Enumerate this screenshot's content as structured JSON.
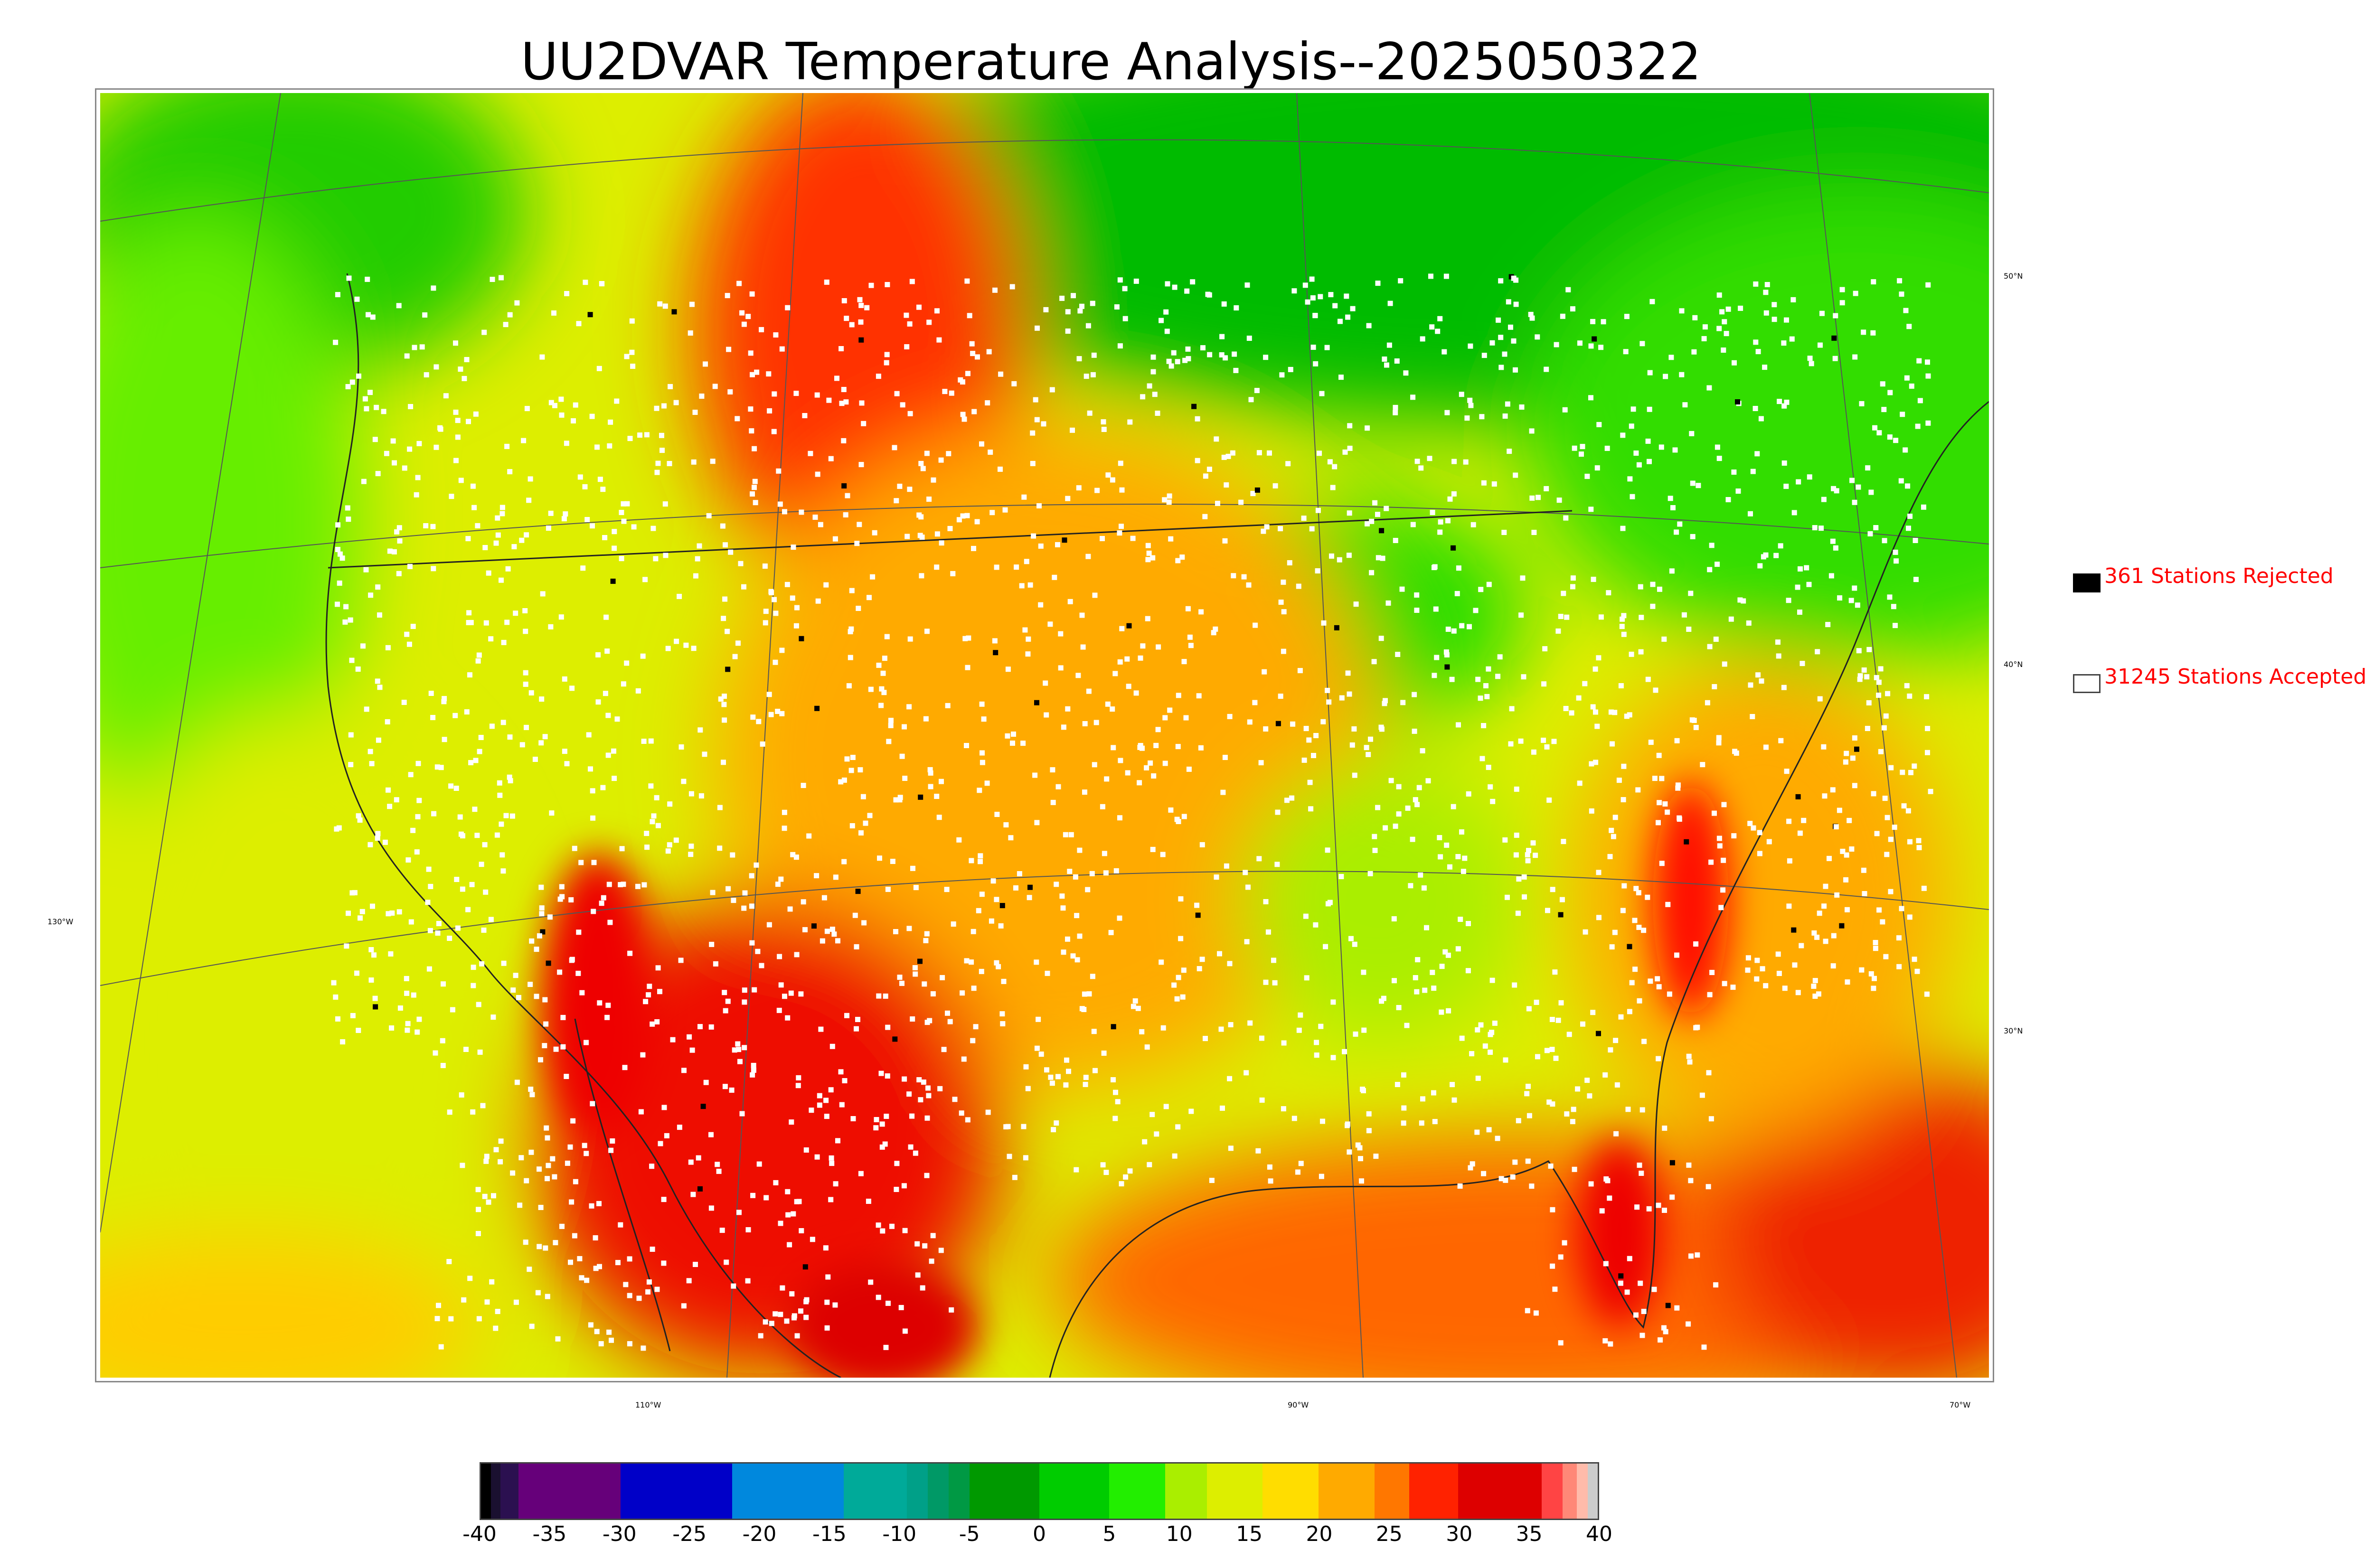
{
  "title": "UU2DVAR Temperature Analysis--2025050322",
  "legend": {
    "rejected": {
      "label": "361 Stations Rejected",
      "color": "#000000"
    },
    "accepted": {
      "label": "31245 Stations Accepted",
      "color": "#ffffff"
    }
  },
  "axes": {
    "lon_labels": [
      "130°W",
      "110°W",
      "90°W",
      "70°W"
    ],
    "lat_labels": [
      "50°N",
      "40°N",
      "30°N"
    ]
  },
  "colorbar": {
    "ticks": [
      "-40",
      "-35",
      "-30",
      "-25",
      "-20",
      "-15",
      "-10",
      "-5",
      "0",
      "5",
      "10",
      "15",
      "20",
      "25",
      "30",
      "35",
      "40"
    ],
    "range": [
      -40,
      40
    ],
    "segments": [
      {
        "from": -40,
        "to": -39.3,
        "color": "#000000"
      },
      {
        "from": -39.3,
        "to": -38.6,
        "color": "#1a1030"
      },
      {
        "from": -38.6,
        "to": -37.3,
        "color": "#2b1050"
      },
      {
        "from": -37.3,
        "to": -30,
        "color": "#66007a"
      },
      {
        "from": -30,
        "to": -22,
        "color": "#0000c8"
      },
      {
        "from": -22,
        "to": -14,
        "color": "#0088dd"
      },
      {
        "from": -14,
        "to": -9.5,
        "color": "#00aa99"
      },
      {
        "from": -9.5,
        "to": -8,
        "color": "#00a088"
      },
      {
        "from": -8,
        "to": -6.5,
        "color": "#009966"
      },
      {
        "from": -6.5,
        "to": -5,
        "color": "#009944"
      },
      {
        "from": -5,
        "to": 0,
        "color": "#009900"
      },
      {
        "from": 0,
        "to": 5,
        "color": "#00cc00"
      },
      {
        "from": 5,
        "to": 9,
        "color": "#22ee00"
      },
      {
        "from": 9,
        "to": 12,
        "color": "#aaee00"
      },
      {
        "from": 12,
        "to": 16,
        "color": "#ddee00"
      },
      {
        "from": 16,
        "to": 20,
        "color": "#ffdd00"
      },
      {
        "from": 20,
        "to": 24,
        "color": "#ffaa00"
      },
      {
        "from": 24,
        "to": 26.5,
        "color": "#ff7700"
      },
      {
        "from": 26.5,
        "to": 30,
        "color": "#ff2200"
      },
      {
        "from": 30,
        "to": 36,
        "color": "#dd0000"
      },
      {
        "from": 36,
        "to": 37.5,
        "color": "#ff4444"
      },
      {
        "from": 37.5,
        "to": 38.5,
        "color": "#ff8877"
      },
      {
        "from": 38.5,
        "to": 39.3,
        "color": "#ffbbaa"
      },
      {
        "from": 39.3,
        "to": 40,
        "color": "#cccccc"
      }
    ]
  }
}
